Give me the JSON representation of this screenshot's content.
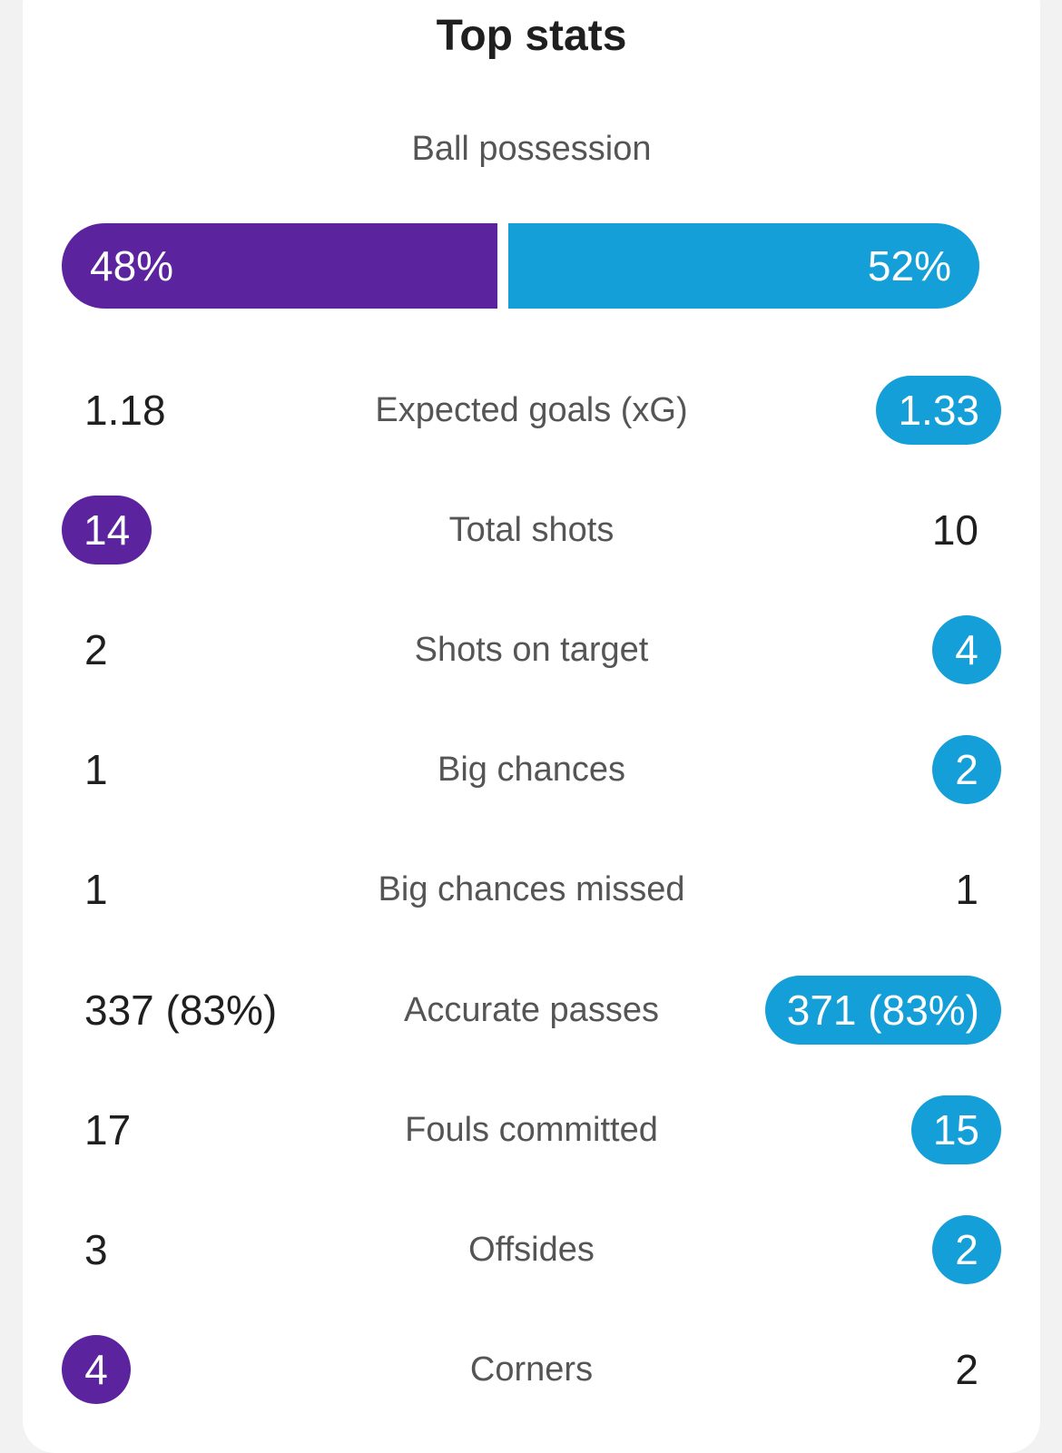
{
  "title": "Top stats",
  "colors": {
    "home": "#5c239e",
    "away": "#149fd8"
  },
  "possession": {
    "label": "Ball possession",
    "home": 48,
    "away": 52,
    "home_text": "48%",
    "away_text": "52%"
  },
  "stats": [
    {
      "label": "Expected goals (xG)",
      "home": "1.18",
      "away": "1.33",
      "highlight": "away"
    },
    {
      "label": "Total shots",
      "home": "14",
      "away": "10",
      "highlight": "home"
    },
    {
      "label": "Shots on target",
      "home": "2",
      "away": "4",
      "highlight": "away"
    },
    {
      "label": "Big chances",
      "home": "1",
      "away": "2",
      "highlight": "away"
    },
    {
      "label": "Big chances missed",
      "home": "1",
      "away": "1",
      "highlight": "none"
    },
    {
      "label": "Accurate passes",
      "home": "337 (83%)",
      "away": "371 (83%)",
      "highlight": "away"
    },
    {
      "label": "Fouls committed",
      "home": "17",
      "away": "15",
      "highlight": "away"
    },
    {
      "label": "Offsides",
      "home": "3",
      "away": "2",
      "highlight": "away"
    },
    {
      "label": "Corners",
      "home": "4",
      "away": "2",
      "highlight": "home"
    }
  ]
}
